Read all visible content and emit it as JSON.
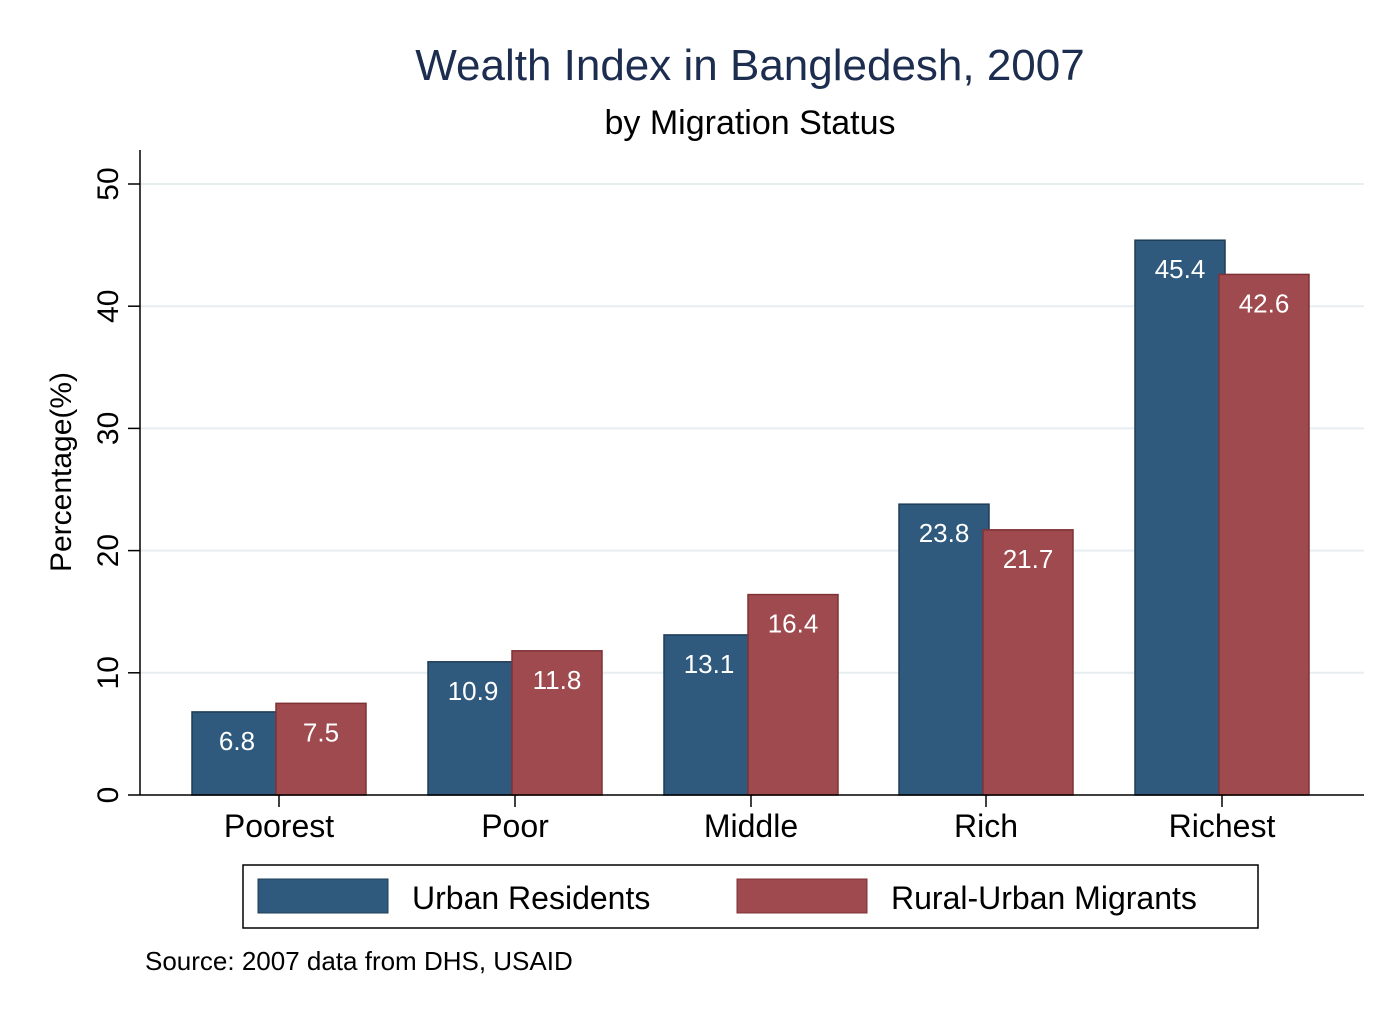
{
  "chart_data": {
    "type": "bar",
    "title": "Wealth Index in Bangledesh, 2007",
    "subtitle": "by Migration Status",
    "ylabel": "Percentage(%)",
    "xlabel": "",
    "ylim": [
      0,
      50
    ],
    "yticks": [
      "0",
      "10",
      "20",
      "30",
      "40",
      "50"
    ],
    "categories": [
      "Poorest",
      "Poor",
      "Middle",
      "Rich",
      "Richest"
    ],
    "series": [
      {
        "name": "Urban Residents",
        "color": "#2f5a7d",
        "values": [
          6.8,
          10.9,
          13.1,
          23.8,
          45.4
        ]
      },
      {
        "name": "Rural-Urban Migrants",
        "color": "#9f4a4e",
        "values": [
          7.5,
          11.8,
          16.4,
          21.7,
          42.6
        ]
      }
    ],
    "grid": true,
    "legend_position": "bottom",
    "note": "Source: 2007 data from DHS, USAID"
  }
}
